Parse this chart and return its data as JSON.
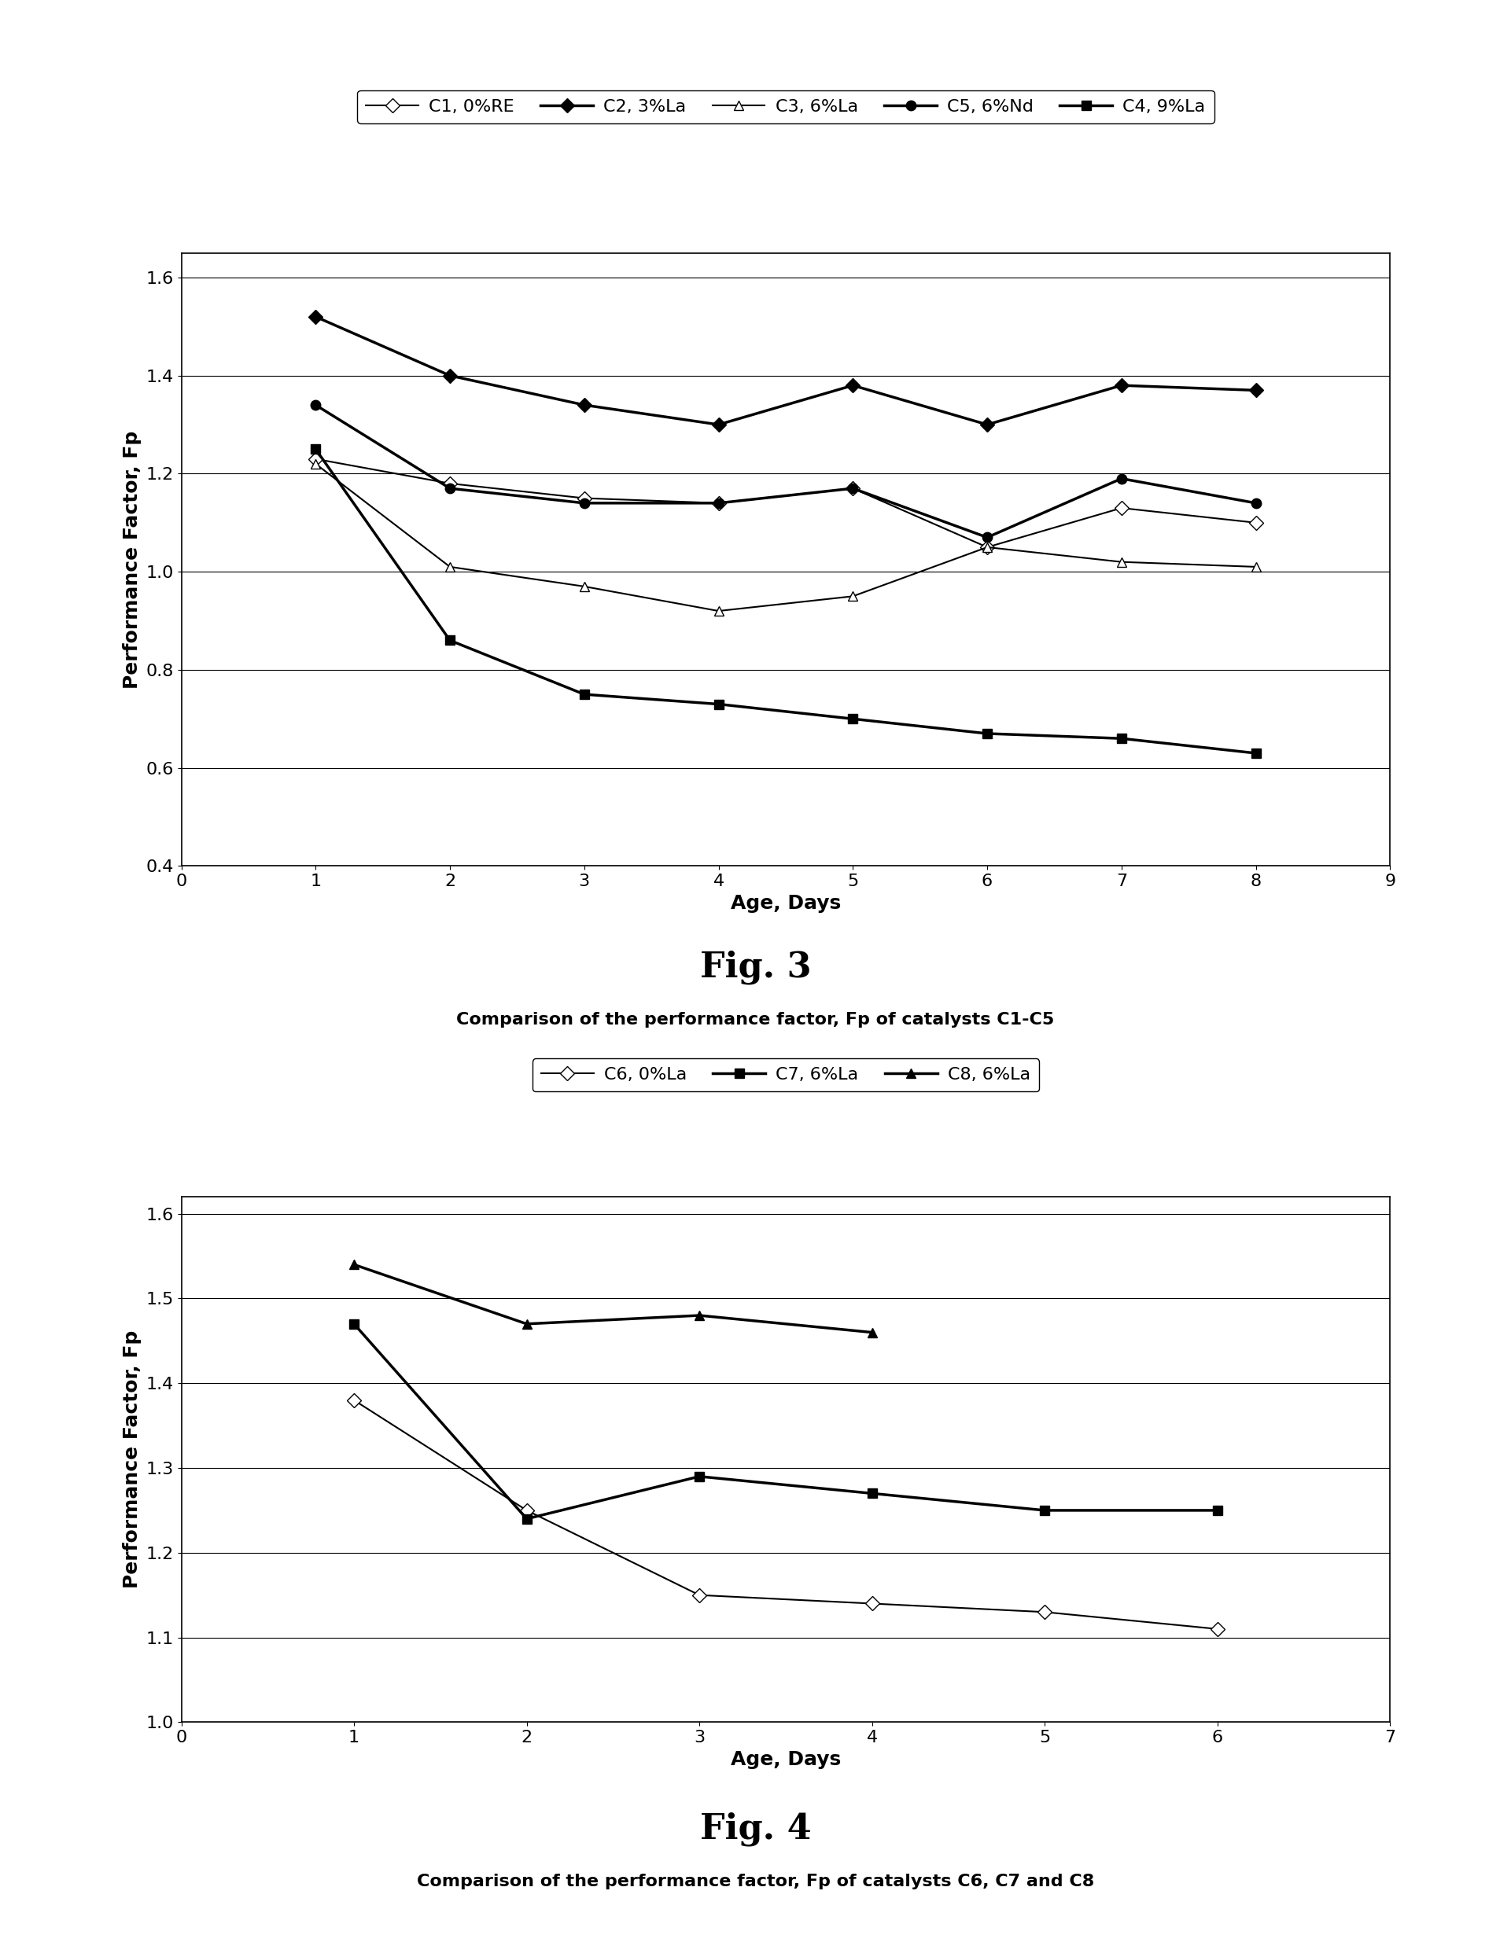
{
  "fig3": {
    "title": "Fig. 3",
    "caption": "Comparison of the performance factor, Fp of catalysts C1-C5",
    "ylabel": "Performance Factor, Fp",
    "xlabel": "Age, Days",
    "xlim": [
      0,
      9
    ],
    "ylim": [
      0.4,
      1.65
    ],
    "yticks": [
      0.4,
      0.6,
      0.8,
      1.0,
      1.2,
      1.4,
      1.6
    ],
    "xticks": [
      0,
      1,
      2,
      3,
      4,
      5,
      6,
      7,
      8,
      9
    ],
    "series": [
      {
        "label": "C1, 0%RE",
        "x": [
          1,
          2,
          3,
          4,
          5,
          6,
          7,
          8
        ],
        "y": [
          1.23,
          1.18,
          1.15,
          1.14,
          1.17,
          1.05,
          1.13,
          1.1
        ],
        "color": "#000000",
        "marker": "D",
        "marker_fill": "white",
        "linewidth": 1.5,
        "markersize": 9
      },
      {
        "label": "C2, 3%La",
        "x": [
          1,
          2,
          3,
          4,
          5,
          6,
          7,
          8
        ],
        "y": [
          1.52,
          1.4,
          1.34,
          1.3,
          1.38,
          1.3,
          1.38,
          1.37
        ],
        "color": "#000000",
        "marker": "D",
        "marker_fill": "black",
        "linewidth": 2.5,
        "markersize": 9
      },
      {
        "label": "C3, 6%La",
        "x": [
          1,
          2,
          3,
          4,
          5,
          6,
          7,
          8
        ],
        "y": [
          1.22,
          1.01,
          0.97,
          0.92,
          0.95,
          1.05,
          1.02,
          1.01
        ],
        "color": "#000000",
        "marker": "^",
        "marker_fill": "white",
        "linewidth": 1.5,
        "markersize": 9
      },
      {
        "label": "C5, 6%Nd",
        "x": [
          1,
          2,
          3,
          4,
          5,
          6,
          7,
          8
        ],
        "y": [
          1.34,
          1.17,
          1.14,
          1.14,
          1.17,
          1.07,
          1.19,
          1.14
        ],
        "color": "#000000",
        "marker": "o",
        "marker_fill": "black",
        "linewidth": 2.5,
        "markersize": 9
      },
      {
        "label": "C4, 9%La",
        "x": [
          1,
          2,
          3,
          4,
          5,
          6,
          7,
          8
        ],
        "y": [
          1.25,
          0.86,
          0.75,
          0.73,
          0.7,
          0.67,
          0.66,
          0.63
        ],
        "color": "#000000",
        "marker": "s",
        "marker_fill": "black",
        "linewidth": 2.5,
        "markersize": 9
      }
    ]
  },
  "fig4": {
    "title": "Fig. 4",
    "caption": "Comparison of the performance factor, Fp of catalysts C6, C7 and C8",
    "ylabel": "Performance Factor, Fp",
    "xlabel": "Age, Days",
    "xlim": [
      0,
      7
    ],
    "ylim": [
      1.0,
      1.62
    ],
    "yticks": [
      1.0,
      1.1,
      1.2,
      1.3,
      1.4,
      1.5,
      1.6
    ],
    "xticks": [
      0,
      1,
      2,
      3,
      4,
      5,
      6,
      7
    ],
    "series": [
      {
        "label": "C6, 0%La",
        "x": [
          1,
          2,
          3,
          4,
          5,
          6
        ],
        "y": [
          1.38,
          1.25,
          1.15,
          1.14,
          1.13,
          1.11
        ],
        "color": "#000000",
        "marker": "D",
        "marker_fill": "white",
        "linewidth": 1.5,
        "markersize": 9
      },
      {
        "label": "C7, 6%La",
        "x": [
          1,
          2,
          3,
          4,
          5,
          6
        ],
        "y": [
          1.47,
          1.24,
          1.29,
          1.27,
          1.25,
          1.25
        ],
        "color": "#000000",
        "marker": "s",
        "marker_fill": "black",
        "linewidth": 2.5,
        "markersize": 9
      },
      {
        "label": "C8, 6%La",
        "x": [
          1,
          2,
          3,
          4
        ],
        "y": [
          1.54,
          1.47,
          1.48,
          1.46
        ],
        "color": "#000000",
        "marker": "^",
        "marker_fill": "black",
        "linewidth": 2.5,
        "markersize": 9
      }
    ]
  },
  "background_color": "#ffffff",
  "fig_title_fontsize": 32,
  "caption_fontsize": 16,
  "label_fontsize": 18,
  "tick_fontsize": 16,
  "legend_fontsize": 16
}
